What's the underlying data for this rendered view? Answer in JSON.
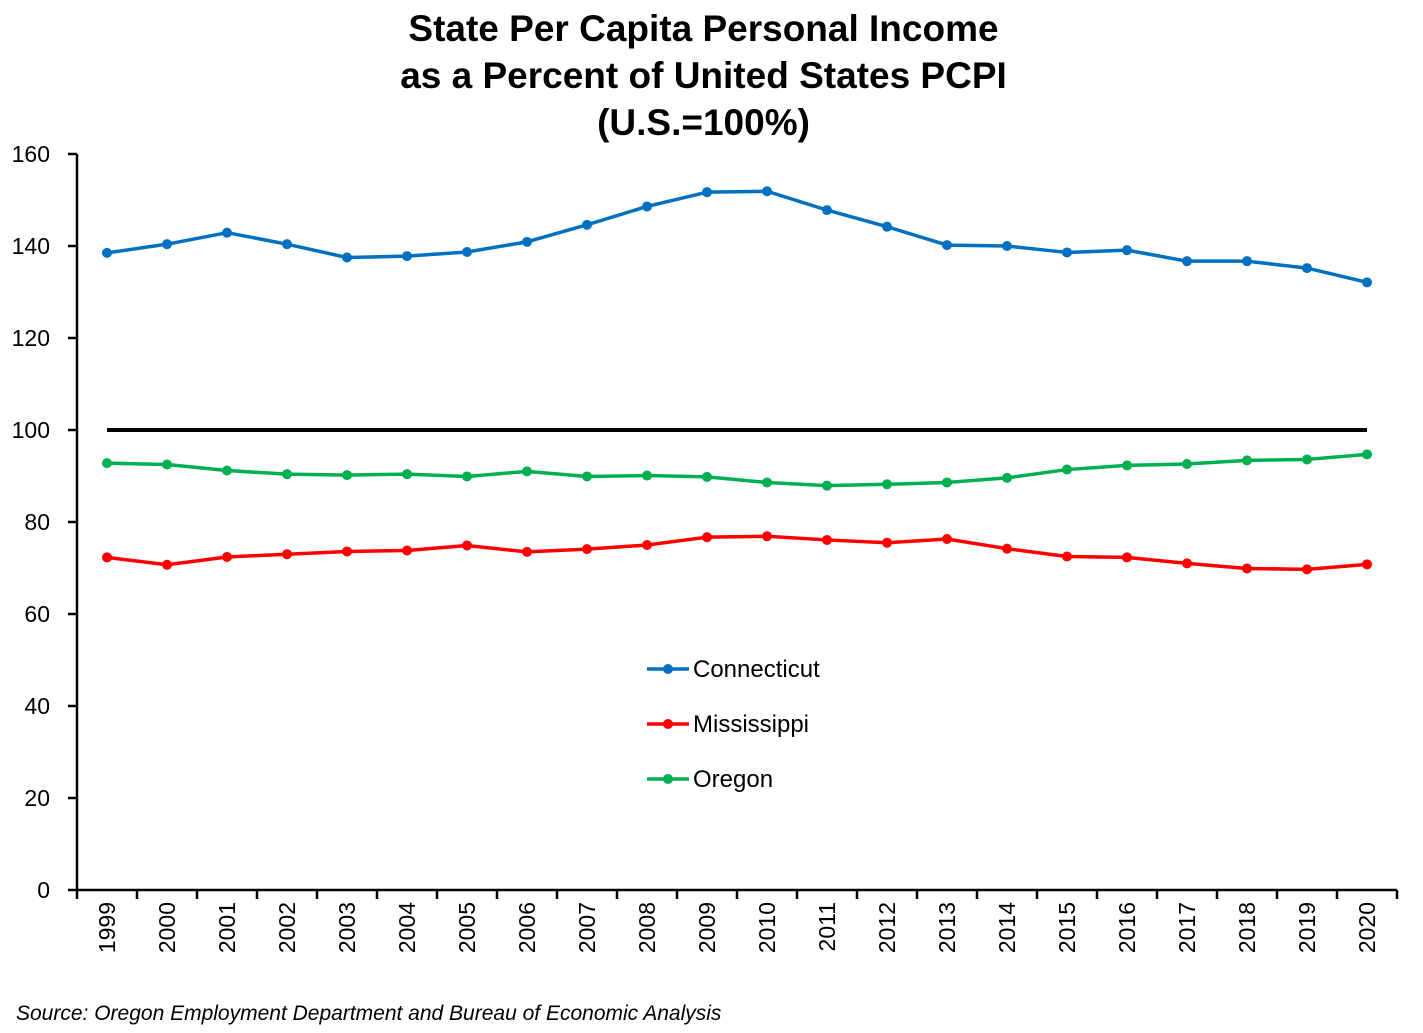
{
  "chart_data": {
    "type": "line",
    "title_lines": [
      "State Per Capita Personal Income",
      "as a Percent of United States PCPI",
      "(U.S.=100%)"
    ],
    "categories": [
      "1999",
      "2000",
      "2001",
      "2002",
      "2003",
      "2004",
      "2005",
      "2006",
      "2007",
      "2008",
      "2009",
      "2010",
      "2011",
      "2012",
      "2013",
      "2014",
      "2015",
      "2016",
      "2017",
      "2018",
      "2019",
      "2020"
    ],
    "ylim": [
      0,
      160
    ],
    "yticks": [
      "0",
      "20",
      "40",
      "60",
      "80",
      "100",
      "120",
      "140",
      "160"
    ],
    "reference_line": {
      "value": 100,
      "color": "#000000"
    },
    "legend_position": "center",
    "series": [
      {
        "name": "Connecticut",
        "color": "#0070C0",
        "values": [
          138.5,
          140.4,
          142.9,
          140.4,
          137.5,
          137.8,
          138.7,
          140.9,
          144.6,
          148.6,
          151.7,
          151.9,
          147.8,
          144.2,
          140.2,
          140.0,
          138.6,
          139.1,
          136.7,
          136.7,
          135.2,
          132.1
        ]
      },
      {
        "name": "Mississippi",
        "color": "#FF0000",
        "values": [
          72.3,
          70.7,
          72.4,
          73.0,
          73.6,
          73.8,
          74.9,
          73.5,
          74.1,
          75.0,
          76.7,
          76.9,
          76.1,
          75.5,
          76.3,
          74.2,
          72.5,
          72.3,
          71.0,
          69.9,
          69.7,
          70.8
        ]
      },
      {
        "name": "Oregon",
        "color": "#00B050",
        "values": [
          92.8,
          92.5,
          91.2,
          90.4,
          90.2,
          90.4,
          89.9,
          91.0,
          89.9,
          90.1,
          89.8,
          88.6,
          87.9,
          88.2,
          88.6,
          89.6,
          91.4,
          92.3,
          92.6,
          93.4,
          93.6,
          94.7
        ]
      }
    ]
  },
  "source": "Source: Oregon Employment Department and Bureau of Economic Analysis"
}
